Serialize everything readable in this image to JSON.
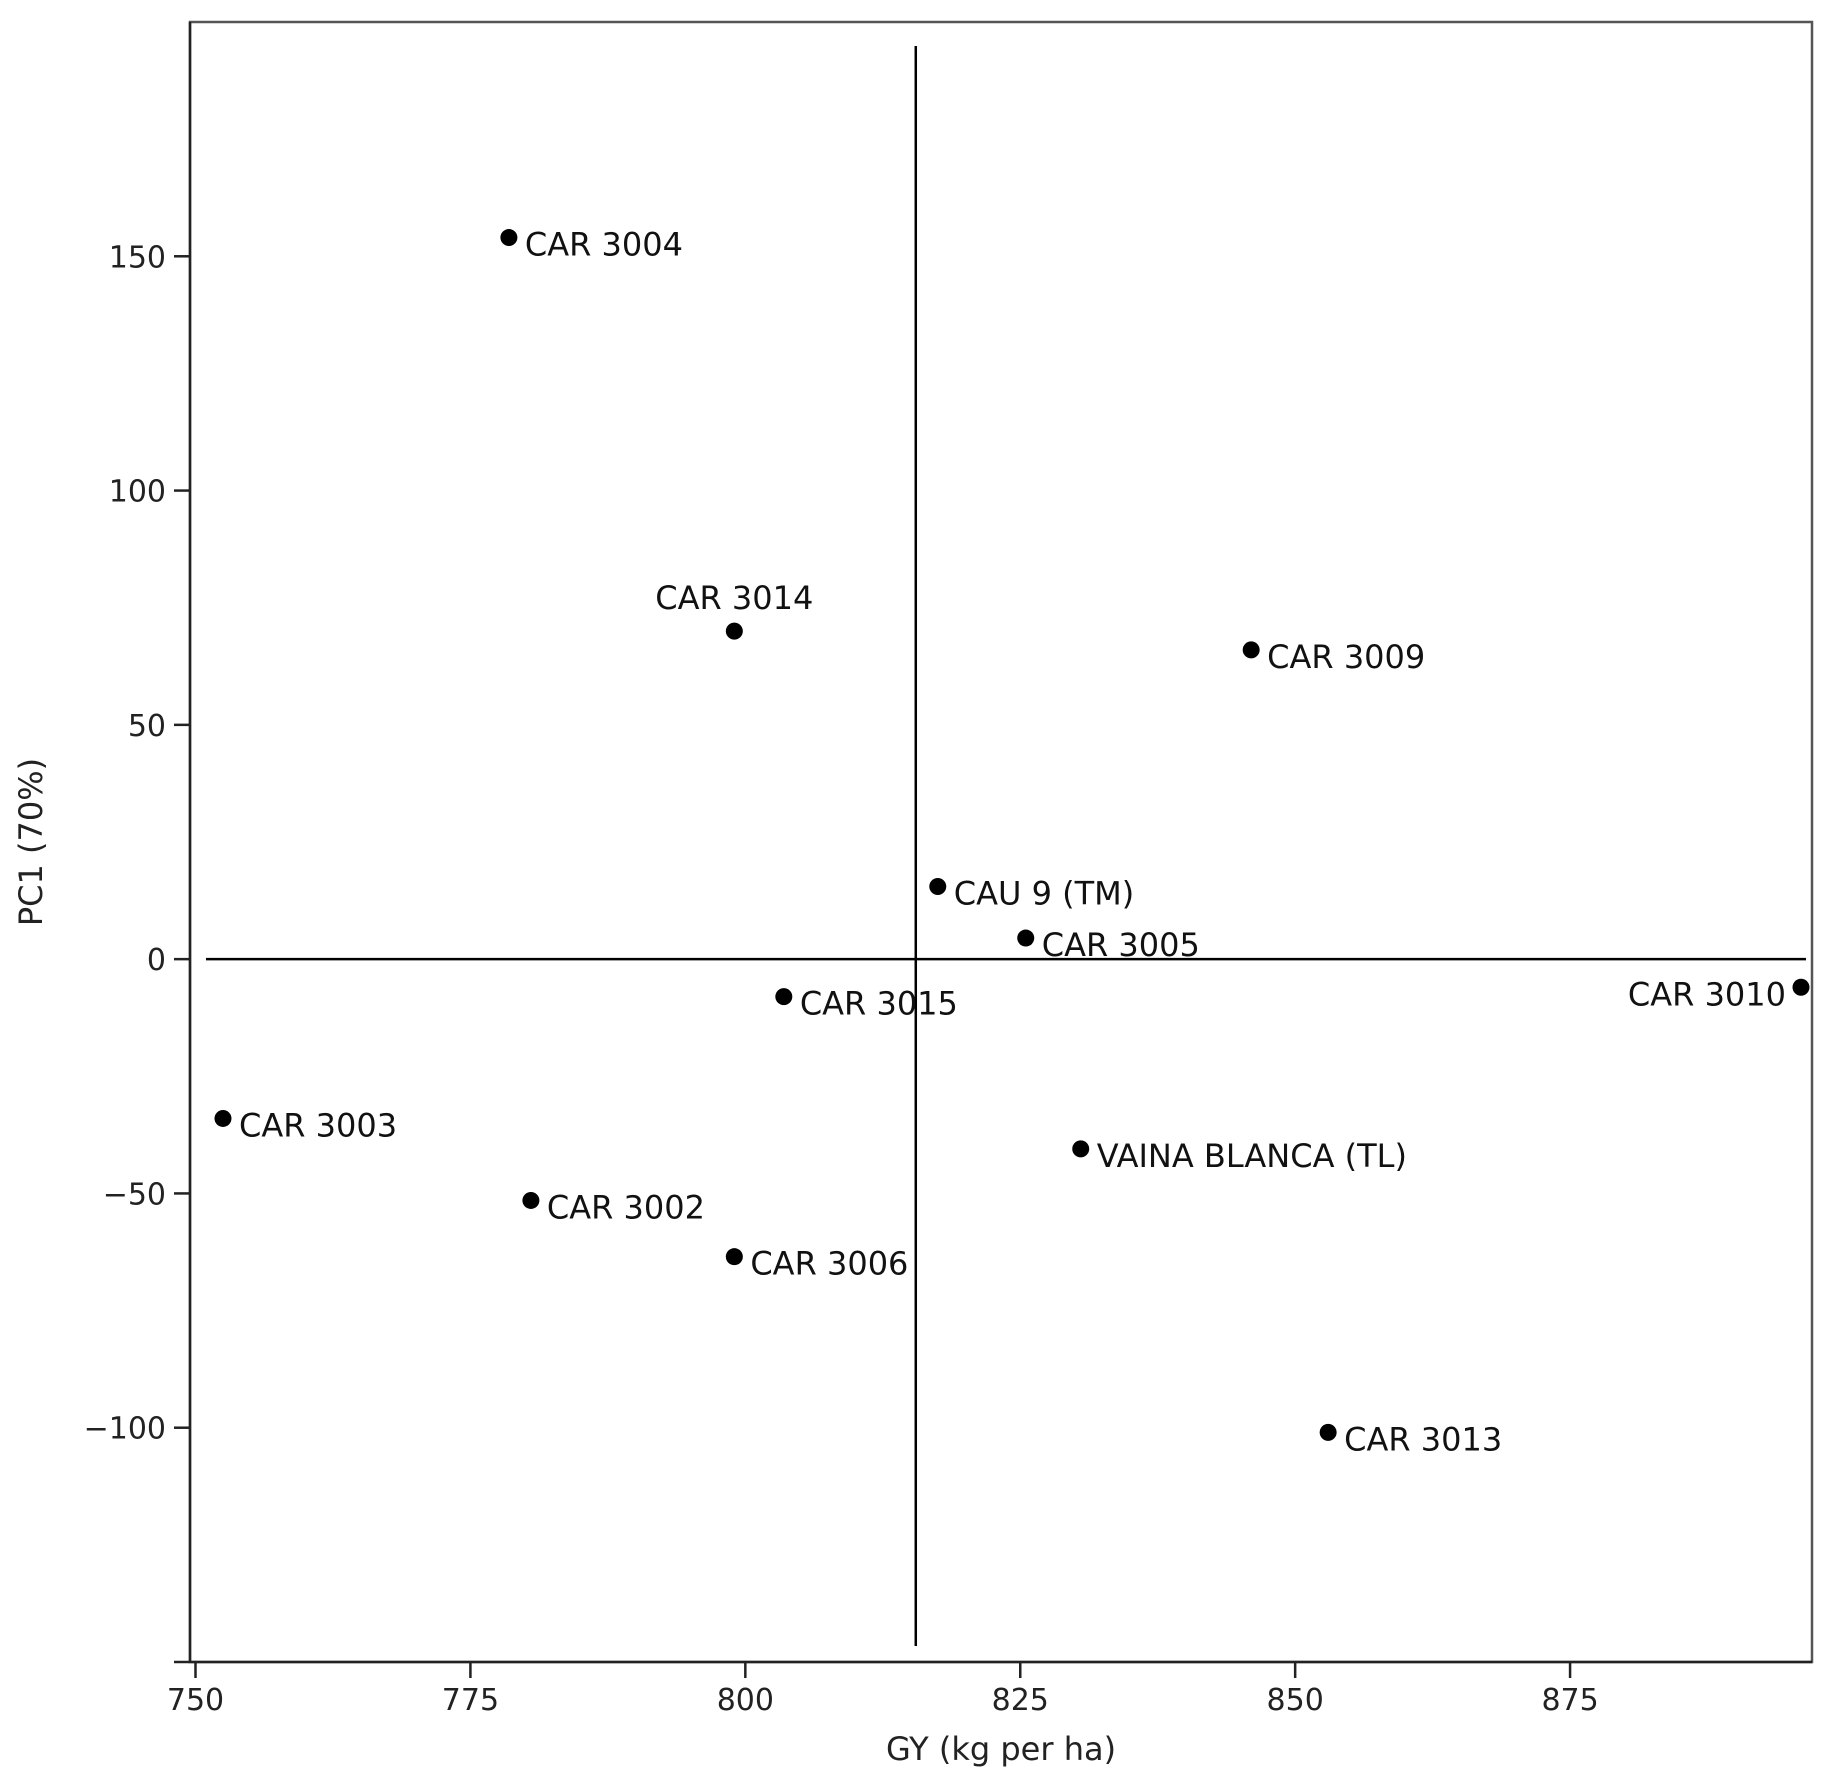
{
  "chart_data": {
    "type": "scatter",
    "title": "",
    "xlabel": "GY (kg per ha)",
    "ylabel": "PC1 (70%)",
    "xlim": [
      749.5,
      897
    ],
    "ylim": [
      -150,
      200
    ],
    "xticks": [
      750,
      775,
      800,
      825,
      850,
      875
    ],
    "yticks": [
      -150,
      -100,
      -50,
      0,
      50,
      100,
      150
    ],
    "ytick_labels": [
      "",
      "−100",
      "−50",
      "0",
      "50",
      "100",
      "150"
    ],
    "reference_lines": {
      "vertical_x": 815.5,
      "horizontal_y": 0
    },
    "grid": false,
    "points": [
      {
        "label": "CAR 3004",
        "x": 778.5,
        "y": 154,
        "label_side": "right"
      },
      {
        "label": "CAR 3014",
        "x": 799,
        "y": 70,
        "label_side": "above"
      },
      {
        "label": "CAR 3009",
        "x": 846,
        "y": 66,
        "label_side": "right"
      },
      {
        "label": "CAU 9 (TM)",
        "x": 817.5,
        "y": 15.5,
        "label_side": "right"
      },
      {
        "label": "CAR 3005",
        "x": 825.5,
        "y": 4.5,
        "label_side": "right"
      },
      {
        "label": "CAR 3010",
        "x": 896,
        "y": -6,
        "label_side": "left"
      },
      {
        "label": "CAR 3015",
        "x": 803.5,
        "y": -8,
        "label_side": "right"
      },
      {
        "label": "CAR 3003",
        "x": 752.5,
        "y": -34,
        "label_side": "right"
      },
      {
        "label": "VAINA BLANCA (TL)",
        "x": 830.5,
        "y": -40.5,
        "label_side": "right"
      },
      {
        "label": "CAR 3002",
        "x": 780.5,
        "y": -51.5,
        "label_side": "right"
      },
      {
        "label": "CAR 3006",
        "x": 799,
        "y": -63.5,
        "label_side": "right"
      },
      {
        "label": "CAR 3013",
        "x": 853,
        "y": -101,
        "label_side": "right"
      }
    ],
    "marker_color": "#000000"
  }
}
